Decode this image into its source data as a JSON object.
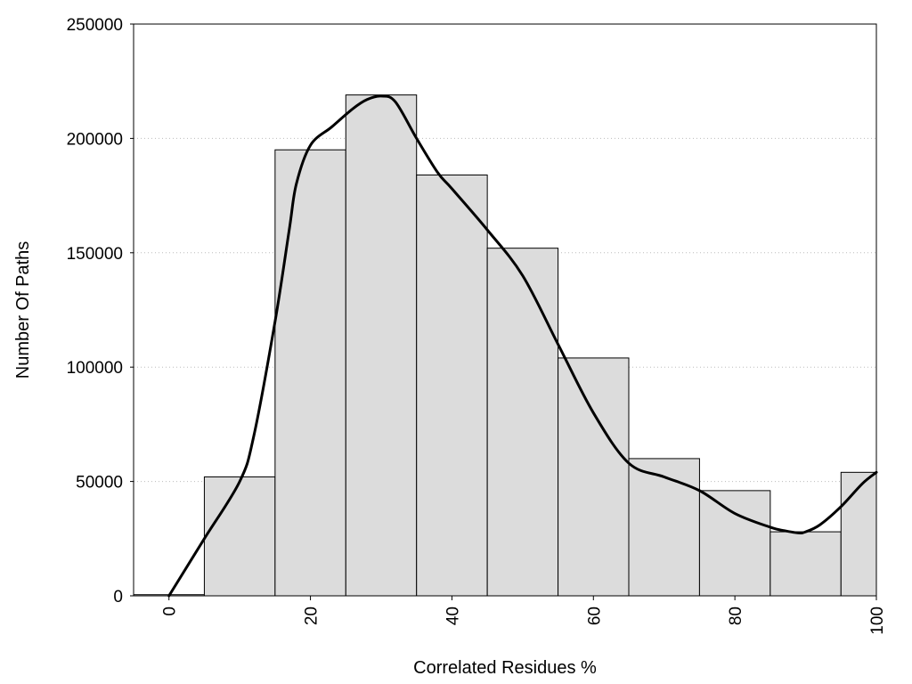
{
  "chart_data": {
    "type": "bar",
    "title": "",
    "xlabel": "Correlated Residues %",
    "ylabel": "Number Of Paths",
    "xlim": [
      -5,
      100
    ],
    "ylim": [
      0,
      250000
    ],
    "x_ticks": [
      0,
      20,
      40,
      60,
      80,
      100
    ],
    "y_ticks": [
      0,
      50000,
      100000,
      150000,
      200000,
      250000
    ],
    "grid": "horizontal dotted",
    "bar_color": "#dcdcdc",
    "bins": [
      {
        "start": -5,
        "end": 5,
        "value": 500
      },
      {
        "start": 5,
        "end": 15,
        "value": 52000
      },
      {
        "start": 15,
        "end": 25,
        "value": 195000
      },
      {
        "start": 25,
        "end": 35,
        "value": 219000
      },
      {
        "start": 35,
        "end": 45,
        "value": 184000
      },
      {
        "start": 45,
        "end": 55,
        "value": 152000
      },
      {
        "start": 55,
        "end": 65,
        "value": 104000
      },
      {
        "start": 65,
        "end": 75,
        "value": 60000
      },
      {
        "start": 75,
        "end": 85,
        "value": 46000
      },
      {
        "start": 85,
        "end": 95,
        "value": 28000
      },
      {
        "start": 95,
        "end": 100,
        "value": 54000
      }
    ],
    "curve": {
      "x": [
        0,
        5,
        10,
        12,
        15,
        17,
        18,
        20,
        23,
        26,
        28,
        30,
        32,
        35,
        38,
        40,
        45,
        50,
        55,
        60,
        65,
        70,
        75,
        80,
        85,
        87,
        89,
        90,
        92,
        95,
        98,
        100
      ],
      "y": [
        0,
        25000,
        50000,
        70000,
        120000,
        160000,
        180000,
        197000,
        205000,
        213000,
        217000,
        218500,
        216000,
        200000,
        185000,
        178000,
        160000,
        140000,
        110000,
        80000,
        58000,
        52000,
        46000,
        36000,
        30000,
        28500,
        27500,
        28000,
        31000,
        39000,
        49000,
        54000
      ]
    }
  }
}
